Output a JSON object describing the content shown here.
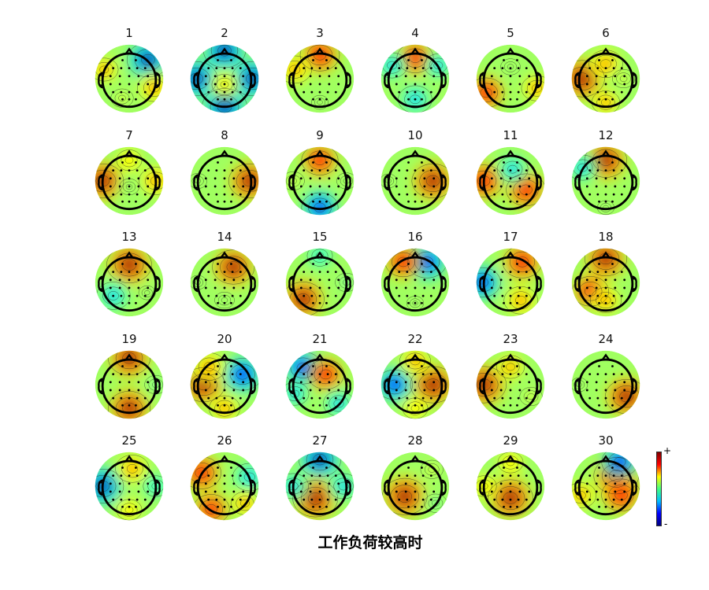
{
  "caption": "工作负荷较高时",
  "colorbar": {
    "max_label": "+",
    "min_label": "-"
  },
  "colormap": [
    "#00008f",
    "#0000ff",
    "#00c8ff",
    "#40ffc0",
    "#a0ff60",
    "#ffff00",
    "#ff8000",
    "#ff0000",
    "#800000"
  ],
  "maps": [
    {
      "label": "1",
      "blobs": [
        {
          "a": -45,
          "r": 0.9,
          "v": -0.9
        },
        {
          "a": 20,
          "r": 0.9,
          "v": 0.6
        },
        {
          "a": 200,
          "r": 0.9,
          "v": 0.4
        },
        {
          "a": 110,
          "r": 0.7,
          "v": 0.2
        }
      ]
    },
    {
      "label": "2",
      "blobs": [
        {
          "a": 90,
          "r": 0.95,
          "v": -1.0
        },
        {
          "a": 0,
          "r": 0.95,
          "v": -0.9
        },
        {
          "a": 180,
          "r": 0.95,
          "v": -0.9
        },
        {
          "a": 270,
          "r": 0.95,
          "v": -0.9
        },
        {
          "a": 90,
          "r": 0.2,
          "v": 0.3
        }
      ]
    },
    {
      "label": "3",
      "blobs": [
        {
          "a": -90,
          "r": 0.8,
          "v": 0.8
        },
        {
          "a": 90,
          "r": 0.8,
          "v": 0.0
        },
        {
          "a": 200,
          "r": 0.9,
          "v": 0.6
        }
      ]
    },
    {
      "label": "4",
      "blobs": [
        {
          "a": -90,
          "r": 0.7,
          "v": 0.7
        },
        {
          "a": 90,
          "r": 0.7,
          "v": -0.6
        },
        {
          "a": 210,
          "r": 0.9,
          "v": -0.5
        },
        {
          "a": -30,
          "r": 0.9,
          "v": -0.4
        }
      ]
    },
    {
      "label": "5",
      "blobs": [
        {
          "a": 150,
          "r": 0.95,
          "v": 0.7
        },
        {
          "a": 20,
          "r": 0.95,
          "v": 0.5
        },
        {
          "a": -90,
          "r": 0.4,
          "v": 0.1
        }
      ]
    },
    {
      "label": "6",
      "blobs": [
        {
          "a": 180,
          "r": 0.8,
          "v": 1.0
        },
        {
          "a": -90,
          "r": 0.5,
          "v": 0.6
        },
        {
          "a": 0,
          "r": 0.6,
          "v": 0.2
        },
        {
          "a": 90,
          "r": 0.8,
          "v": 0.4
        }
      ]
    },
    {
      "label": "7",
      "blobs": [
        {
          "a": 180,
          "r": 0.9,
          "v": 0.9
        },
        {
          "a": 0,
          "r": 0.9,
          "v": 0.6
        },
        {
          "a": 90,
          "r": 0.2,
          "v": 0.1
        },
        {
          "a": -90,
          "r": 0.7,
          "v": 0.3
        }
      ]
    },
    {
      "label": "8",
      "blobs": [
        {
          "a": 0,
          "r": 0.85,
          "v": 0.9
        },
        {
          "a": 180,
          "r": 0.9,
          "v": 0.05
        }
      ]
    },
    {
      "label": "9",
      "blobs": [
        {
          "a": -90,
          "r": 0.7,
          "v": 0.7
        },
        {
          "a": 90,
          "r": 0.9,
          "v": -0.7
        },
        {
          "a": 180,
          "r": 0.9,
          "v": 0.2
        },
        {
          "a": 0,
          "r": 0.9,
          "v": 0.1
        }
      ]
    },
    {
      "label": "10",
      "blobs": [
        {
          "a": 0,
          "r": 0.6,
          "v": 0.9
        },
        {
          "a": 180,
          "r": 0.9,
          "v": 0.0
        }
      ]
    },
    {
      "label": "11",
      "blobs": [
        {
          "a": 180,
          "r": 0.9,
          "v": 0.8
        },
        {
          "a": 30,
          "r": 0.6,
          "v": 0.8
        },
        {
          "a": -80,
          "r": 0.4,
          "v": -0.5
        }
      ]
    },
    {
      "label": "12",
      "blobs": [
        {
          "a": -90,
          "r": 0.7,
          "v": 0.9
        },
        {
          "a": -150,
          "r": 0.9,
          "v": -0.5
        },
        {
          "a": 90,
          "r": 0.9,
          "v": 0.0
        }
      ]
    },
    {
      "label": "13",
      "blobs": [
        {
          "a": -90,
          "r": 0.6,
          "v": 1.0
        },
        {
          "a": 140,
          "r": 0.7,
          "v": -0.6
        },
        {
          "a": 30,
          "r": 0.7,
          "v": 0.0
        }
      ]
    },
    {
      "label": "14",
      "blobs": [
        {
          "a": -60,
          "r": 0.6,
          "v": 0.9
        },
        {
          "a": 180,
          "r": 0.9,
          "v": 0.0
        },
        {
          "a": 90,
          "r": 0.6,
          "v": 0.1
        }
      ]
    },
    {
      "label": "15",
      "blobs": [
        {
          "a": 135,
          "r": 0.8,
          "v": 0.9
        },
        {
          "a": -90,
          "r": 0.9,
          "v": -0.3
        },
        {
          "a": 0,
          "r": 0.9,
          "v": -0.2
        }
      ]
    },
    {
      "label": "16",
      "blobs": [
        {
          "a": -60,
          "r": 0.8,
          "v": -0.8
        },
        {
          "a": -120,
          "r": 0.8,
          "v": 0.7
        },
        {
          "a": 90,
          "r": 0.7,
          "v": 0.0
        }
      ]
    },
    {
      "label": "17",
      "blobs": [
        {
          "a": -60,
          "r": 0.8,
          "v": 0.8
        },
        {
          "a": 180,
          "r": 0.95,
          "v": -0.7
        },
        {
          "a": 60,
          "r": 0.7,
          "v": 0.6
        }
      ]
    },
    {
      "label": "18",
      "blobs": [
        {
          "a": -90,
          "r": 0.8,
          "v": 0.9
        },
        {
          "a": 150,
          "r": 0.6,
          "v": 0.7
        },
        {
          "a": 90,
          "r": 0.6,
          "v": 0.5
        }
      ]
    },
    {
      "label": "19",
      "blobs": [
        {
          "a": -90,
          "r": 0.9,
          "v": 0.9
        },
        {
          "a": 90,
          "r": 0.8,
          "v": 0.9
        },
        {
          "a": 0,
          "r": 0.9,
          "v": -0.2
        }
      ]
    },
    {
      "label": "20",
      "blobs": [
        {
          "a": 180,
          "r": 0.7,
          "v": 0.9
        },
        {
          "a": -30,
          "r": 0.7,
          "v": -0.8
        },
        {
          "a": -130,
          "r": 0.8,
          "v": 0.6
        },
        {
          "a": 90,
          "r": 0.8,
          "v": 0.5
        }
      ]
    },
    {
      "label": "21",
      "blobs": [
        {
          "a": -135,
          "r": 0.8,
          "v": -0.8
        },
        {
          "a": -60,
          "r": 0.4,
          "v": 0.7
        },
        {
          "a": 45,
          "r": 0.9,
          "v": -0.5
        },
        {
          "a": 160,
          "r": 0.9,
          "v": -0.4
        }
      ]
    },
    {
      "label": "22",
      "blobs": [
        {
          "a": 0,
          "r": 0.6,
          "v": 1.0
        },
        {
          "a": 180,
          "r": 0.7,
          "v": -0.7
        },
        {
          "a": -90,
          "r": 0.8,
          "v": 0.5
        },
        {
          "a": 90,
          "r": 0.8,
          "v": 0.3
        }
      ]
    },
    {
      "label": "23",
      "blobs": [
        {
          "a": 180,
          "r": 0.9,
          "v": 1.0
        },
        {
          "a": -90,
          "r": 0.6,
          "v": 0.4
        },
        {
          "a": 30,
          "r": 0.8,
          "v": 0.2
        }
      ]
    },
    {
      "label": "24",
      "blobs": [
        {
          "a": 30,
          "r": 0.8,
          "v": 0.9
        },
        {
          "a": 180,
          "r": 0.9,
          "v": 0.0
        }
      ]
    },
    {
      "label": "25",
      "blobs": [
        {
          "a": 180,
          "r": 0.9,
          "v": -0.9
        },
        {
          "a": -80,
          "r": 0.6,
          "v": 0.6
        },
        {
          "a": 90,
          "r": 0.8,
          "v": 0.3
        },
        {
          "a": 0,
          "r": 0.9,
          "v": -0.3
        }
      ]
    },
    {
      "label": "26",
      "blobs": [
        {
          "a": -150,
          "r": 0.9,
          "v": 0.8
        },
        {
          "a": -20,
          "r": 0.9,
          "v": -0.6
        },
        {
          "a": 120,
          "r": 0.9,
          "v": 0.7
        },
        {
          "a": 40,
          "r": 0.9,
          "v": 0.4
        }
      ]
    },
    {
      "label": "27",
      "blobs": [
        {
          "a": -90,
          "r": 0.9,
          "v": -0.9
        },
        {
          "a": 110,
          "r": 0.45,
          "v": 1.0
        },
        {
          "a": 0,
          "r": 0.8,
          "v": -0.5
        },
        {
          "a": 180,
          "r": 0.9,
          "v": -0.5
        }
      ]
    },
    {
      "label": "28",
      "blobs": [
        {
          "a": 135,
          "r": 0.5,
          "v": 1.0
        },
        {
          "a": -45,
          "r": 0.8,
          "v": 0.2
        },
        {
          "a": 40,
          "r": 0.9,
          "v": -0.2
        }
      ]
    },
    {
      "label": "29",
      "blobs": [
        {
          "a": 90,
          "r": 0.4,
          "v": 1.0
        },
        {
          "a": -90,
          "r": 0.8,
          "v": 0.3
        },
        {
          "a": 180,
          "r": 0.9,
          "v": 0.3
        }
      ]
    },
    {
      "label": "30",
      "blobs": [
        {
          "a": -45,
          "r": 0.5,
          "v": 1.0
        },
        {
          "a": -60,
          "r": 0.95,
          "v": -0.7
        },
        {
          "a": 160,
          "r": 0.9,
          "v": 0.5
        },
        {
          "a": 30,
          "r": 0.6,
          "v": 0.8
        }
      ]
    }
  ]
}
